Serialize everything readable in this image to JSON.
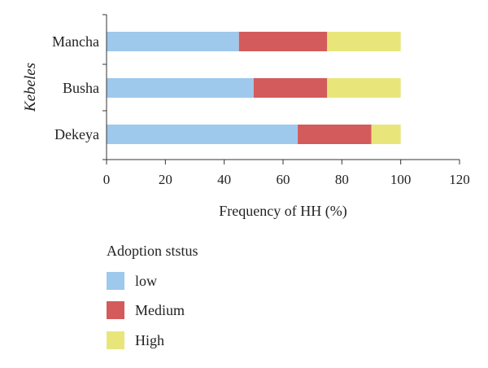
{
  "chart_data": {
    "type": "bar",
    "orientation": "horizontal",
    "stacked": true,
    "categories": [
      "Mancha",
      "Busha",
      "Dekeya"
    ],
    "series": [
      {
        "name": "low",
        "values": [
          45,
          50,
          65
        ],
        "color": "#9ec8ec"
      },
      {
        "name": "Medium",
        "values": [
          30,
          25,
          25
        ],
        "color": "#d45b5b"
      },
      {
        "name": "High",
        "values": [
          25,
          25,
          10
        ],
        "color": "#e8e67a"
      }
    ],
    "xlabel": "Frequency of HH (%)",
    "ylabel": "Kebeles",
    "xlim": [
      0,
      120
    ],
    "xticks": [
      0,
      20,
      40,
      60,
      80,
      100,
      120
    ],
    "grid": false,
    "legend": {
      "title": "Adoption ststus",
      "placement": "bottom-left"
    }
  }
}
